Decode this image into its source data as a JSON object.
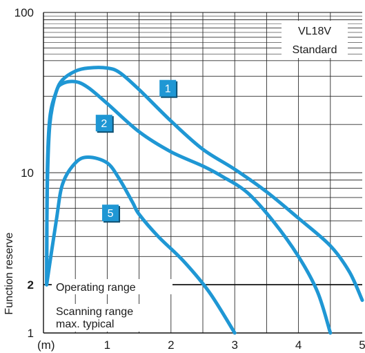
{
  "chart_data": {
    "type": "line",
    "ylabel": "Function reserve",
    "x_unit": "(m)",
    "xlim": [
      0,
      5
    ],
    "ylim": [
      1,
      100
    ],
    "y_scale": "log",
    "x_ticks": [
      "1",
      "2",
      "3",
      "4",
      "5"
    ],
    "y_ticks": [
      {
        "value": 1,
        "label": "1",
        "bold": false
      },
      {
        "value": 2,
        "label": "2",
        "bold": true
      },
      {
        "value": 10,
        "label": "10",
        "bold": false
      },
      {
        "value": 100,
        "label": "100",
        "bold": false
      }
    ],
    "grid": true,
    "threshold": {
      "value": 2,
      "above_label": "Operating range",
      "below_label_line1": "Scanning range",
      "below_label_line2": "max. typical"
    },
    "product_label": {
      "line1": "VL18V",
      "line2": "Standard"
    },
    "series": [
      {
        "name": "1",
        "color": "#1f97d4",
        "points": [
          [
            0.05,
            2.0
          ],
          [
            0.06,
            10
          ],
          [
            0.1,
            22
          ],
          [
            0.2,
            32
          ],
          [
            0.3,
            38
          ],
          [
            0.5,
            43
          ],
          [
            0.7,
            45
          ],
          [
            1.0,
            45
          ],
          [
            1.2,
            42
          ],
          [
            1.5,
            33
          ],
          [
            2.0,
            21
          ],
          [
            2.5,
            14
          ],
          [
            3.0,
            10.5
          ],
          [
            3.5,
            7.6
          ],
          [
            4.0,
            5.2
          ],
          [
            4.5,
            3.5
          ],
          [
            4.8,
            2.4
          ],
          [
            5.0,
            1.6
          ]
        ],
        "badge": {
          "x": 1.95,
          "y": 33
        }
      },
      {
        "name": "2",
        "color": "#1f97d4",
        "points": [
          [
            0.05,
            2.0
          ],
          [
            0.06,
            8
          ],
          [
            0.1,
            20
          ],
          [
            0.2,
            32
          ],
          [
            0.3,
            36
          ],
          [
            0.5,
            37
          ],
          [
            0.7,
            34
          ],
          [
            1.0,
            27
          ],
          [
            1.5,
            18
          ],
          [
            2.0,
            13.5
          ],
          [
            2.5,
            11
          ],
          [
            2.8,
            9.5
          ],
          [
            3.2,
            7.5
          ],
          [
            3.6,
            5
          ],
          [
            4.0,
            3.0
          ],
          [
            4.3,
            1.8
          ],
          [
            4.5,
            1.0
          ]
        ],
        "badge": {
          "x": 0.95,
          "y": 20
        }
      },
      {
        "name": "5",
        "color": "#1f97d4",
        "points": [
          [
            0.05,
            2.0
          ],
          [
            0.2,
            5
          ],
          [
            0.3,
            8.5
          ],
          [
            0.5,
            11.5
          ],
          [
            0.7,
            12.5
          ],
          [
            1.0,
            11.5
          ],
          [
            1.2,
            9
          ],
          [
            1.4,
            6.5
          ],
          [
            1.5,
            5.5
          ],
          [
            1.8,
            4
          ],
          [
            2.2,
            2.8
          ],
          [
            2.6,
            1.8
          ],
          [
            3.0,
            1.0
          ]
        ],
        "badge": {
          "x": 1.05,
          "y": 5.5
        }
      }
    ]
  }
}
